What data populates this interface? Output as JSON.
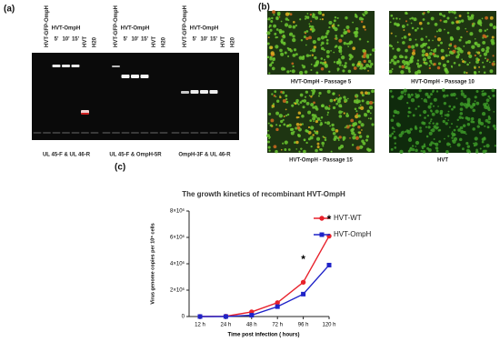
{
  "gel": {
    "label": "(a)",
    "groups": [
      {
        "sample_label": "HVT-GFP-OmpH",
        "virus_label": "HVT-OmpH",
        "times": [
          "5'",
          "10'",
          "15'"
        ],
        "controls": [
          "HVT",
          "H20"
        ],
        "caption": "UL 45-F & UL 46-R"
      },
      {
        "sample_label": "HVT-GFP-OmpH",
        "virus_label": "HVT-OmpH",
        "times": [
          "5'",
          "10'",
          "15'"
        ],
        "controls": [
          "HVT",
          "H20"
        ],
        "caption": "UL 45-F & OmpH-5R"
      },
      {
        "sample_label": "HVT-GFP-OmpH",
        "virus_label": "HVT-OmpH",
        "times": [
          "5'",
          "10'",
          "15'"
        ],
        "controls": [
          "HVT",
          "H20"
        ],
        "caption": "OmpH-3F & UL 46-R"
      }
    ]
  },
  "micrographs": {
    "label": "(b)",
    "images": [
      {
        "caption": "HVT-OmpH - Passage 5"
      },
      {
        "caption": "HVT-OmpH - Passage 10"
      },
      {
        "caption": "HVT-OmpH - Passage 15"
      },
      {
        "caption": "HVT"
      }
    ]
  },
  "growth_panel_label": "(c)",
  "chart_data": {
    "type": "line",
    "title": "The growth kinetics of recombinant HVT-OmpH",
    "x_label": "Time post infection ( hours)",
    "y_label": "Virus genome copies per 10⁶ cells",
    "categories": [
      "12 h",
      "24 h",
      "48 h",
      "72 h",
      "96 h",
      "120 h"
    ],
    "series": [
      {
        "name": "HVT-WT",
        "color": "#e8212b",
        "marker": "circle",
        "values": [
          0,
          20000,
          350000,
          1050000,
          2600000,
          6100000
        ]
      },
      {
        "name": "HVT-OmpH",
        "color": "#1f23c8",
        "marker": "square",
        "values": [
          0,
          0,
          100000,
          750000,
          1700000,
          3900000
        ]
      }
    ],
    "ylim": [
      0,
      8000000
    ],
    "yticks": [
      0,
      {
        "value": 2000000,
        "label": "2×10⁶"
      },
      {
        "value": 4000000,
        "label": "4×10⁶"
      },
      {
        "value": 6000000,
        "label": "6×10⁶"
      },
      {
        "value": 8000000,
        "label": "8×10⁶"
      }
    ],
    "annotations": [
      "*",
      "*"
    ],
    "legend": "right"
  }
}
